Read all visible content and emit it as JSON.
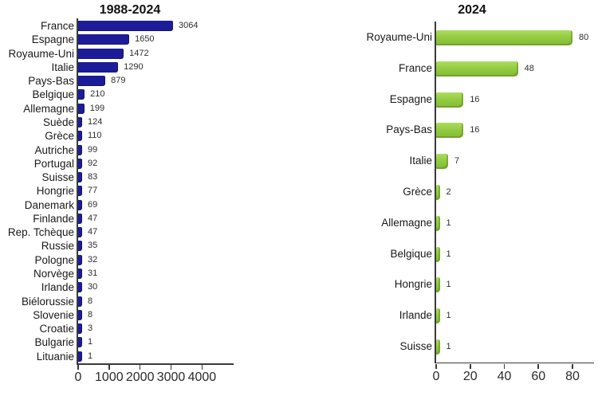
{
  "chart_data": [
    {
      "type": "bar",
      "orientation": "horizontal",
      "title": "1988-2024",
      "categories": [
        "France",
        "Espagne",
        "Royaume-Uni",
        "Italie",
        "Pays-Bas",
        "Belgique",
        "Allemagne",
        "Suède",
        "Grèce",
        "Autriche",
        "Portugal",
        "Suisse",
        "Hongrie",
        "Danemark",
        "Finlande",
        "Rep. Tchèque",
        "Russie",
        "Pologne",
        "Norvège",
        "Irlande",
        "Biélorussie",
        "Slovenie",
        "Croatie",
        "Bulgarie",
        "Lituanie"
      ],
      "values": [
        3064,
        1650,
        1472,
        1290,
        879,
        210,
        199,
        124,
        110,
        99,
        92,
        83,
        77,
        69,
        47,
        47,
        35,
        32,
        31,
        30,
        8,
        8,
        3,
        1,
        1
      ],
      "x_ticks": [
        0,
        1000,
        2000,
        3000,
        4000
      ],
      "xlim": [
        0,
        5000
      ],
      "bar_color": "#1c1c99",
      "data_labels": true,
      "grid": false,
      "legend": false
    },
    {
      "type": "bar",
      "orientation": "horizontal",
      "title": "2024",
      "categories": [
        "Royaume-Uni",
        "France",
        "Espagne",
        "Pays-Bas",
        "Italie",
        "Grèce",
        "Allemagne",
        "Belgique",
        "Hongrie",
        "Irlande",
        "Suisse"
      ],
      "values": [
        80,
        48,
        16,
        16,
        7,
        2,
        1,
        1,
        1,
        1,
        1
      ],
      "x_ticks": [
        0,
        20,
        40,
        60,
        80
      ],
      "xlim": [
        0,
        92
      ],
      "bar_color": "#8dc63f",
      "data_labels": true,
      "grid": false,
      "legend": false
    }
  ]
}
